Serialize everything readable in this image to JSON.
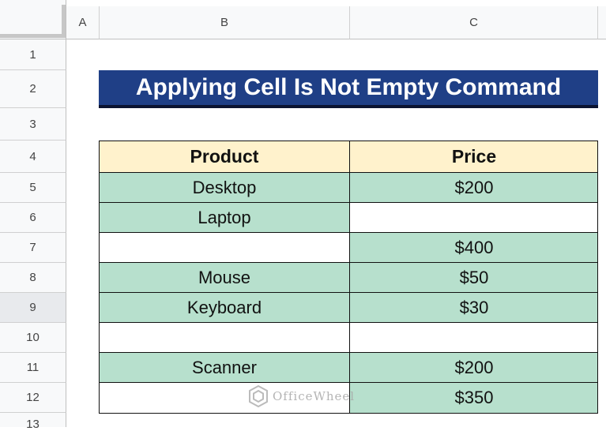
{
  "columns": [
    "A",
    "B",
    "C"
  ],
  "rows": [
    "1",
    "2",
    "3",
    "4",
    "5",
    "6",
    "7",
    "8",
    "9",
    "10",
    "11",
    "12",
    "13"
  ],
  "title": "Applying Cell Is Not Empty Command",
  "table": {
    "headers": [
      "Product",
      "Price"
    ],
    "rows": [
      {
        "product": "Desktop",
        "price": "$200"
      },
      {
        "product": "Laptop",
        "price": ""
      },
      {
        "product": "",
        "price": "$400"
      },
      {
        "product": "Mouse",
        "price": "$50"
      },
      {
        "product": "Keyboard",
        "price": "$30"
      },
      {
        "product": "",
        "price": ""
      },
      {
        "product": "Scanner",
        "price": "$200"
      },
      {
        "product": "",
        "price": "$350"
      }
    ]
  },
  "colors": {
    "title_bg": "#1f3f86",
    "header_bg": "#fff2cc",
    "filled_bg": "#b7e0cd"
  },
  "watermark": {
    "text": "OfficeWheel",
    "icon": "officewheel-logo-icon"
  }
}
